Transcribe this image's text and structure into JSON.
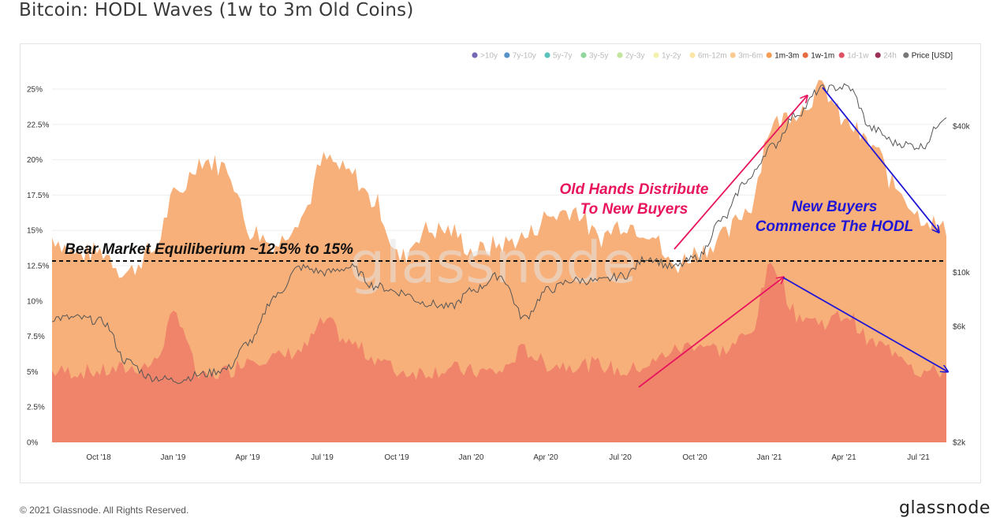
{
  "title": "Bitcoin: HODL Waves (1w to 3m Old Coins)",
  "footer": {
    "copyright": "© 2021 Glassnode. All Rights Reserved.",
    "brand": "glassnode"
  },
  "watermark": "glassnode",
  "colors": {
    "band_1m_3m": "#f8b07a",
    "band_1w_1m": "#ef846a",
    "price": "#555555",
    "pink": "#e8145e",
    "blue": "#1f16d6"
  },
  "annotations": {
    "bear": "Bear Market Equiliberium ~12.5% to 15%",
    "old_hands_1": "Old Hands Distribute",
    "old_hands_2": "To New Buyers",
    "new_buyers_1": "New Buyers",
    "new_buyers_2": "Commence The HODL"
  },
  "chart_data": {
    "type": "area",
    "x_tick_labels": [
      "Oct '18",
      "Jan '19",
      "Apr '19",
      "Jul '19",
      "Oct '19",
      "Jan '20",
      "Apr '20",
      "Jul '20",
      "Oct '20",
      "Jan '21",
      "Apr '21",
      "Jul '21"
    ],
    "y_tick_labels": [
      "0%",
      "2.5%",
      "5%",
      "7.5%",
      "10%",
      "12.5%",
      "15%",
      "17.5%",
      "20%",
      "22.5%",
      "25%"
    ],
    "y_right_tick_labels": [
      "$2k",
      "$6k",
      "$10k",
      "$40k"
    ],
    "ylim": [
      0,
      25
    ],
    "price_scale": "log",
    "reference_line_pct": 13,
    "legend": [
      {
        "name": ">10y",
        "color": "#5a4fa8",
        "active": false
      },
      {
        "name": "7y-10y",
        "color": "#3a7fc0",
        "active": false
      },
      {
        "name": "5y-7y",
        "color": "#3db8b0",
        "active": false
      },
      {
        "name": "3y-5y",
        "color": "#7ccf8a",
        "active": false
      },
      {
        "name": "2y-3y",
        "color": "#b9e08a",
        "active": false
      },
      {
        "name": "1y-2y",
        "color": "#f2f0a0",
        "active": false
      },
      {
        "name": "6m-12m",
        "color": "#fce196",
        "active": false
      },
      {
        "name": "3m-6m",
        "color": "#f9c27c",
        "active": false
      },
      {
        "name": "1m-3m",
        "color": "#f59c55",
        "active": true
      },
      {
        "name": "1w-1m",
        "color": "#e86a40",
        "active": true
      },
      {
        "name": "1d-1w",
        "color": "#d8344a",
        "active": false
      },
      {
        "name": "24h",
        "color": "#8a0a3a",
        "active": false
      },
      {
        "name": "Price [USD]",
        "color": "#777777",
        "active": true
      }
    ],
    "dates": [
      "2018-08",
      "2018-09",
      "2018-10",
      "2018-11",
      "2018-12",
      "2019-01",
      "2019-02",
      "2019-03",
      "2019-04",
      "2019-05",
      "2019-06",
      "2019-07",
      "2019-08",
      "2019-09",
      "2019-10",
      "2019-11",
      "2019-12",
      "2020-01",
      "2020-02",
      "2020-03",
      "2020-04",
      "2020-05",
      "2020-06",
      "2020-07",
      "2020-08",
      "2020-09",
      "2020-10",
      "2020-11",
      "2020-12",
      "2021-01",
      "2021-02",
      "2021-03",
      "2021-04",
      "2021-05",
      "2021-06",
      "2021-07",
      "2021-08"
    ],
    "series": [
      {
        "name": "1m-3m",
        "values": [
          14.5,
          13.3,
          13.5,
          12.0,
          13.5,
          17.5,
          20.0,
          19.5,
          15.0,
          14.0,
          16.0,
          20.0,
          19.0,
          17.0,
          13.0,
          15.0,
          15.0,
          13.5,
          14.0,
          14.5,
          16.0,
          16.5,
          14.5,
          15.5,
          15.0,
          12.5,
          13.5,
          14.5,
          16.5,
          22.5,
          23.5,
          25.0,
          22.5,
          21.0,
          18.0,
          16.0,
          15.0
        ]
      },
      {
        "name": "1w-1m",
        "values": [
          5.0,
          5.0,
          5.0,
          5.2,
          5.5,
          9.0,
          4.5,
          5.0,
          6.0,
          6.0,
          6.5,
          8.5,
          7.0,
          6.0,
          5.0,
          5.0,
          5.2,
          5.0,
          5.0,
          6.5,
          5.5,
          5.5,
          5.5,
          5.0,
          5.5,
          6.5,
          7.0,
          6.5,
          7.5,
          12.5,
          9.0,
          8.5,
          9.0,
          7.0,
          6.5,
          5.0,
          5.0
        ]
      },
      {
        "name": "Price [USD]",
        "values": [
          6500,
          6500,
          6300,
          4300,
          3700,
          3600,
          3800,
          4000,
          5200,
          8000,
          10500,
          10000,
          10500,
          8800,
          8300,
          7500,
          7200,
          8500,
          9700,
          6500,
          8500,
          9300,
          9200,
          9700,
          11500,
          10500,
          11500,
          16500,
          24000,
          33000,
          45000,
          57000,
          58000,
          39000,
          34000,
          33000,
          44000
        ]
      }
    ]
  }
}
